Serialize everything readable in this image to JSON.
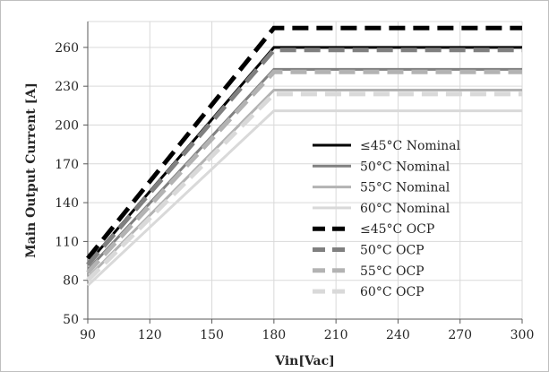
{
  "chart_data": {
    "type": "line",
    "title": "",
    "xlabel": "Vin[Vac]",
    "ylabel": "Main Output Current [A]",
    "xlim": [
      90,
      300
    ],
    "ylim": [
      50,
      280
    ],
    "x_ticks": [
      90,
      120,
      150,
      180,
      210,
      240,
      270,
      300
    ],
    "y_ticks": [
      50,
      80,
      110,
      140,
      170,
      200,
      230,
      260
    ],
    "grid": true,
    "legend_position": "right",
    "series": [
      {
        "name": "≤45°C Nominal",
        "style": "solid",
        "color": "#000000",
        "x": [
          90,
          180,
          300
        ],
        "y": [
          93,
          260,
          260
        ]
      },
      {
        "name": "50°C Nominal",
        "style": "solid",
        "color": "#808080",
        "x": [
          90,
          180,
          300
        ],
        "y": [
          88,
          243,
          243
        ]
      },
      {
        "name": "55°C Nominal",
        "style": "solid",
        "color": "#b3b3b3",
        "x": [
          90,
          180,
          300
        ],
        "y": [
          82,
          227,
          227
        ]
      },
      {
        "name": "60°C Nominal",
        "style": "solid",
        "color": "#d9d9d9",
        "x": [
          90,
          180,
          300
        ],
        "y": [
          76,
          211,
          211
        ]
      },
      {
        "name": "≤45°C OCP",
        "style": "dashed",
        "color": "#000000",
        "x": [
          90,
          180,
          300
        ],
        "y": [
          97,
          275,
          275
        ]
      },
      {
        "name": "50°C OCP",
        "style": "dashed",
        "color": "#808080",
        "x": [
          90,
          180,
          300
        ],
        "y": [
          92,
          258,
          258
        ]
      },
      {
        "name": "55°C OCP",
        "style": "dashed",
        "color": "#b3b3b3",
        "x": [
          90,
          180,
          300
        ],
        "y": [
          86,
          241,
          241
        ]
      },
      {
        "name": "60°C OCP",
        "style": "dashed",
        "color": "#d9d9d9",
        "x": [
          90,
          180,
          300
        ],
        "y": [
          80,
          224,
          224
        ]
      }
    ]
  }
}
